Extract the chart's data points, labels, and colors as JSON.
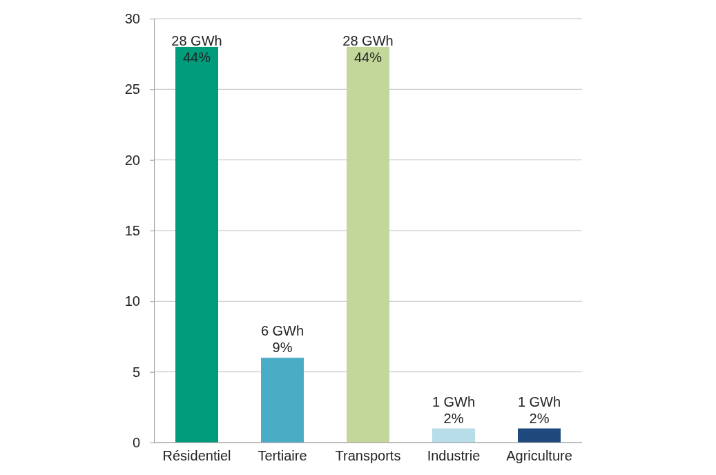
{
  "chart_data": {
    "type": "bar",
    "categories": [
      "Résidentiel",
      "Tertiaire",
      "Transports",
      "Industrie",
      "Agriculture"
    ],
    "values": [
      28,
      6,
      28,
      1,
      1
    ],
    "colors": [
      "#009b7b",
      "#4bacc6",
      "#c4d79b",
      "#b7dde8",
      "#1f497d"
    ],
    "value_labels": [
      "28 GWh\n44%",
      "6 GWh\n9%",
      "28 GWh\n44%",
      "1 GWh\n2%",
      "1 GWh\n2%"
    ],
    "ylim": [
      0,
      30
    ],
    "yticks": [
      0,
      5,
      10,
      15,
      20,
      25,
      30
    ],
    "grid": "y"
  }
}
